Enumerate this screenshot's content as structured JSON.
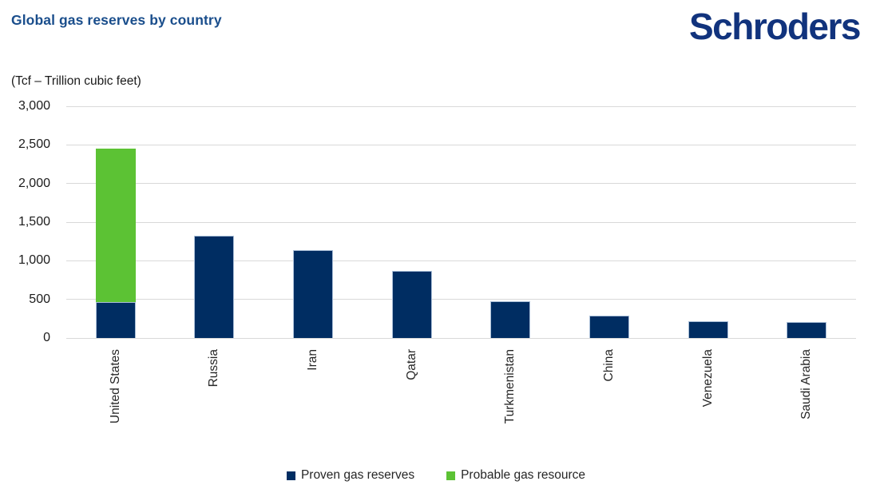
{
  "header": {
    "title": "Global gas reserves by country",
    "logo": "Schroders"
  },
  "chart_data": {
    "type": "bar",
    "stacked": true,
    "title": "Global gas reserves by country",
    "units_label": "(Tcf – Trillion cubic feet)",
    "xlabel": "",
    "ylabel": "Tcf",
    "categories": [
      "United States",
      "Russia",
      "Iran",
      "Qatar",
      "Turkmenistan",
      "China",
      "Venezuela",
      "Saudi Arabia"
    ],
    "series": [
      {
        "name": "Proven gas reserves",
        "color": "#002d62",
        "values": [
          470,
          1320,
          1140,
          870,
          475,
          290,
          215,
          205
        ]
      },
      {
        "name": "Probable gas resource",
        "color": "#5cc234",
        "values": [
          1980,
          0,
          0,
          0,
          0,
          0,
          0,
          0
        ]
      }
    ],
    "ylim": [
      0,
      3000
    ],
    "ytick_step": 500,
    "ytick_labels": [
      "0",
      "500",
      "1,000",
      "1,500",
      "2,000",
      "2,500",
      "3,000"
    ],
    "grid": "horizontal",
    "gridline_color": "#d9d9d9",
    "legend_position": "bottom-center"
  },
  "colors": {
    "title_blue": "#1a4e8c",
    "logo_blue": "#11337d",
    "proven_navy": "#002d62",
    "probable_green": "#5cc234",
    "gridline_gray": "#d9d9d9",
    "text_dark": "#262626"
  }
}
